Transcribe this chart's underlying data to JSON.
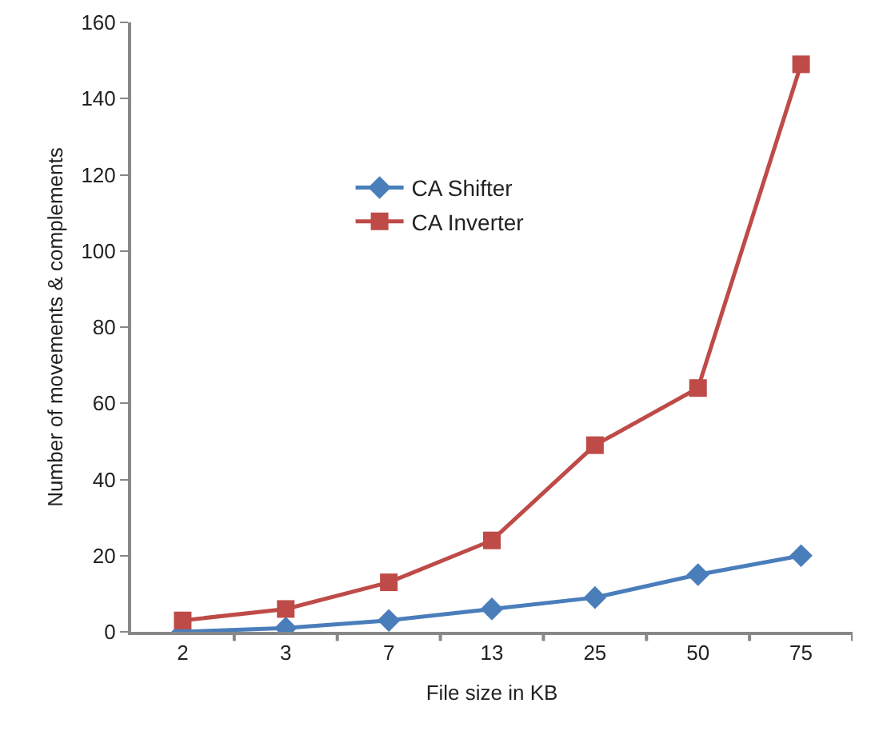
{
  "chart_data": {
    "type": "line",
    "xlabel": "File size in KB",
    "ylabel": "Number of movements & complements",
    "categories": [
      "2",
      "3",
      "7",
      "13",
      "25",
      "50",
      "75"
    ],
    "series": [
      {
        "name": "CA Shifter",
        "color": "#4a7ebb",
        "marker": "diamond",
        "values": [
          0,
          1,
          3,
          6,
          9,
          15,
          20
        ]
      },
      {
        "name": "CA Inverter",
        "color": "#be4b48",
        "marker": "square",
        "values": [
          3,
          6,
          13,
          24,
          49,
          64,
          149
        ]
      }
    ],
    "ylim": [
      0,
      160
    ],
    "yticks": [
      0,
      20,
      40,
      60,
      80,
      100,
      120,
      140,
      160
    ],
    "grid": false,
    "legend": "top left"
  }
}
